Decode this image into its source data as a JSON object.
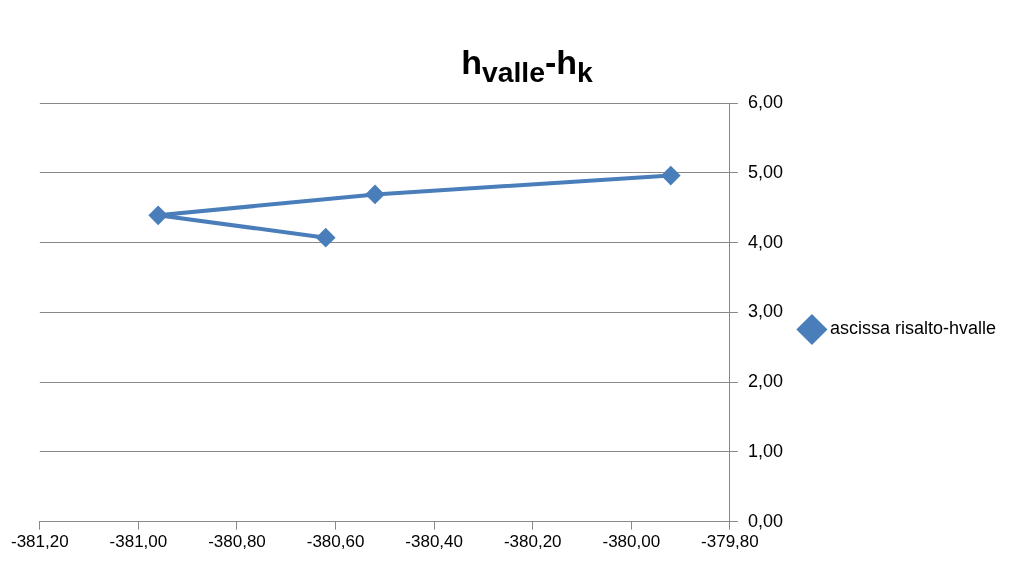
{
  "chart_data": {
    "type": "line",
    "title": "h$_{valle}$-h$_{k}$",
    "series": [
      {
        "name": "ascissa risalto-hvalle",
        "color": "#4a7ebb",
        "x": [
          -380.62,
          -380.96,
          -380.52,
          -379.92
        ],
        "values": [
          4.07,
          4.39,
          4.69,
          4.96
        ]
      }
    ],
    "xlim": [
      -381.2,
      -379.8
    ],
    "xticks": [
      {
        "value": -381.2,
        "label": "-381,20"
      },
      {
        "value": -381.0,
        "label": "-381,00"
      },
      {
        "value": -380.8,
        "label": "-380,80"
      },
      {
        "value": -380.6,
        "label": "-380,60"
      },
      {
        "value": -380.4,
        "label": "-380,40"
      },
      {
        "value": -380.2,
        "label": "-380,20"
      },
      {
        "value": -380.0,
        "label": "-380,00"
      },
      {
        "value": -379.8,
        "label": "-379,80"
      }
    ],
    "ylim": [
      0,
      6
    ],
    "yticks": [
      {
        "value": 0,
        "label": "0,00"
      },
      {
        "value": 1,
        "label": "1,00"
      },
      {
        "value": 2,
        "label": "2,00"
      },
      {
        "value": 3,
        "label": "3,00"
      },
      {
        "value": 4,
        "label": "4,00"
      },
      {
        "value": 5,
        "label": "5,00"
      },
      {
        "value": 6,
        "label": "6,00"
      }
    ],
    "grid": "y",
    "legend": "right",
    "marker": "diamond",
    "line_style": "solid"
  }
}
